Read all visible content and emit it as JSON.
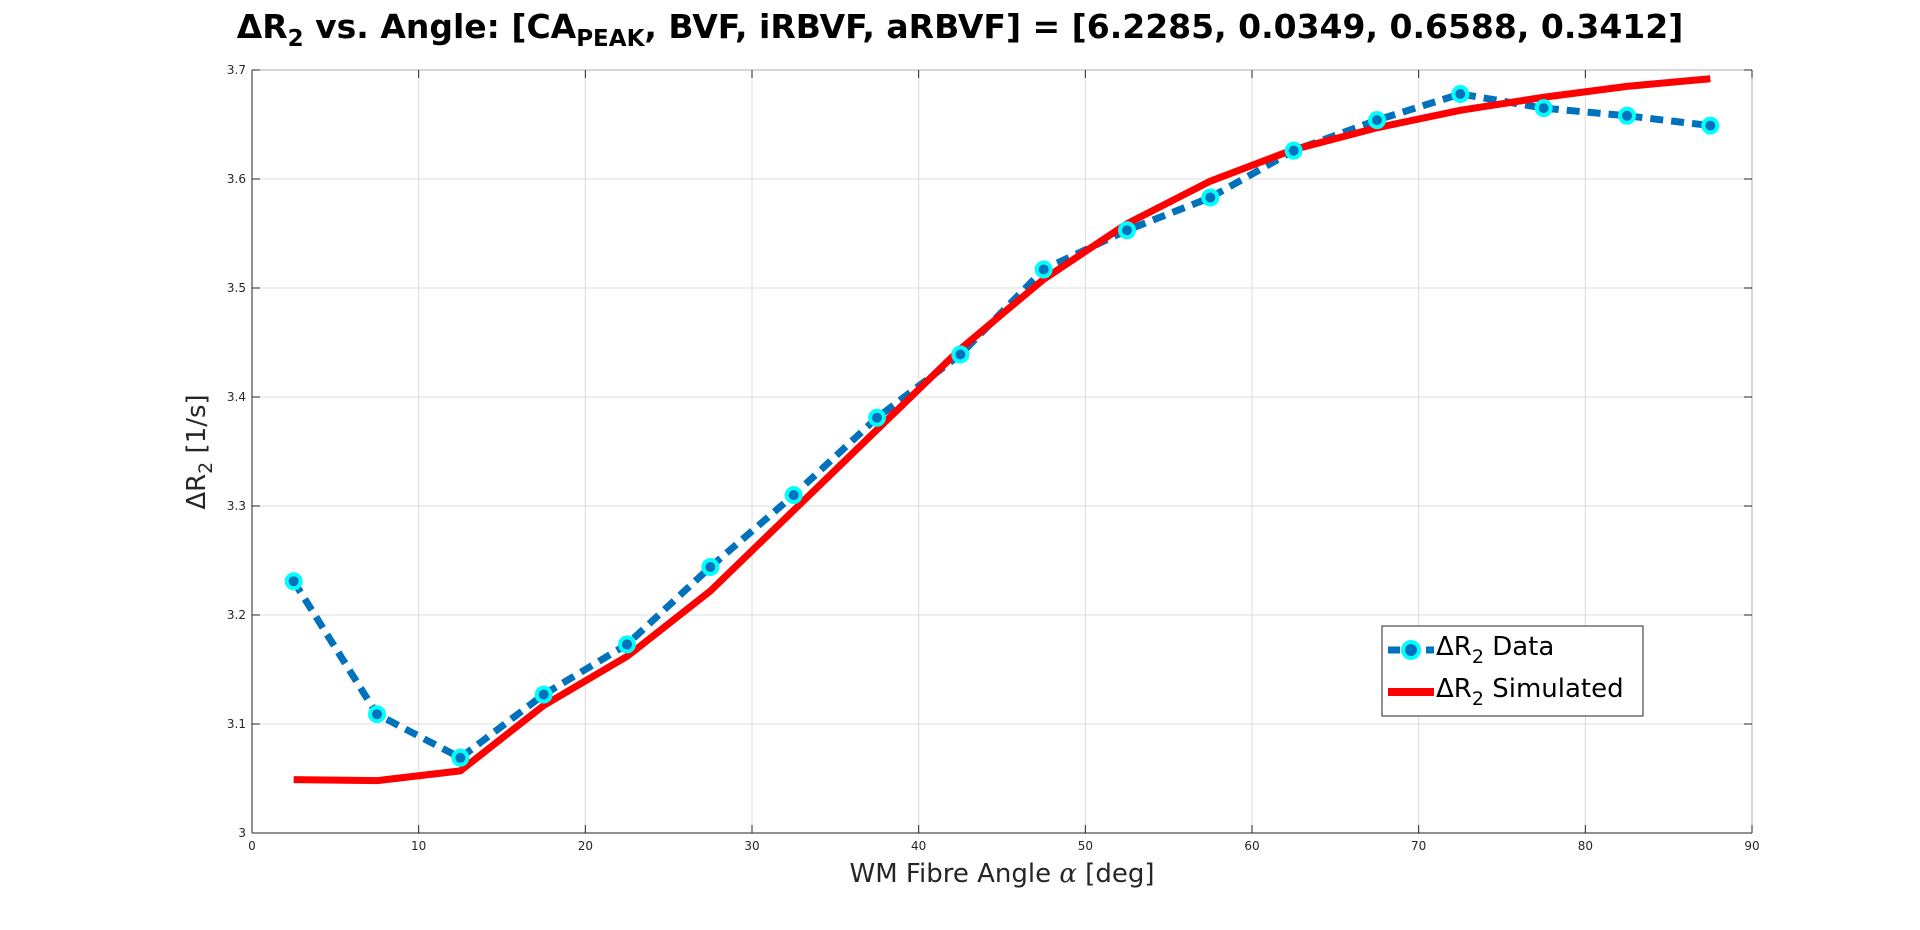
{
  "figure": {
    "title_parts": {
      "delta": "ΔR",
      "delta_sub": "2",
      "vs": " vs. Angle: [CA",
      "peak_sub": "PEAK",
      "rest": ", BVF, iRBVF, aRBVF] = [6.2285, 0.0349, 0.6588, 0.3412]"
    },
    "ylabel_parts": {
      "main": "ΔR",
      "sub": "2",
      "rest": " [1/s]"
    },
    "xlabel_parts": {
      "main": "WM Fibre Angle ",
      "alpha": "α",
      "rest": " [deg]"
    }
  },
  "chart_data": {
    "type": "line",
    "title": "ΔR2 vs. Angle: [CAPEAK, BVF, iRBVF, aRBVF] = [6.2285, 0.0349, 0.6588, 0.3412]",
    "xlabel": "WM Fibre Angle α [deg]",
    "ylabel": "ΔR2 [1/s]",
    "xlim": [
      0,
      90
    ],
    "ylim": [
      3,
      3.7
    ],
    "xticks": [
      "0",
      "10",
      "20",
      "30",
      "40",
      "50",
      "60",
      "70",
      "80",
      "90"
    ],
    "yticks": [
      "3",
      "3.1",
      "3.2",
      "3.3",
      "3.4",
      "3.5",
      "3.6",
      "3.7"
    ],
    "grid": true,
    "legend_position": "lower-right",
    "x": [
      2.5,
      7.5,
      12.5,
      17.5,
      22.5,
      27.5,
      32.5,
      37.5,
      42.5,
      47.5,
      52.5,
      57.5,
      62.5,
      67.5,
      72.5,
      77.5,
      82.5,
      87.5
    ],
    "series": [
      {
        "name": "ΔR2 Data",
        "legend_main": "ΔR",
        "legend_sub": "2",
        "legend_rest": " Data",
        "style": "dashed-markers",
        "color": "#0072BD",
        "marker_color": "#00FFFF",
        "values": [
          3.231,
          3.109,
          3.069,
          3.127,
          3.173,
          3.244,
          3.31,
          3.381,
          3.439,
          3.517,
          3.553,
          3.583,
          3.626,
          3.654,
          3.678,
          3.665,
          3.658,
          3.649
        ]
      },
      {
        "name": "ΔR2 Simulated",
        "legend_main": "ΔR",
        "legend_sub": "2",
        "legend_rest": " Simulated",
        "style": "solid",
        "color": "#FF0000",
        "values": [
          3.049,
          3.048,
          3.057,
          3.117,
          3.162,
          3.222,
          3.296,
          3.37,
          3.444,
          3.508,
          3.559,
          3.598,
          3.627,
          3.647,
          3.663,
          3.675,
          3.685,
          3.692
        ]
      }
    ]
  }
}
